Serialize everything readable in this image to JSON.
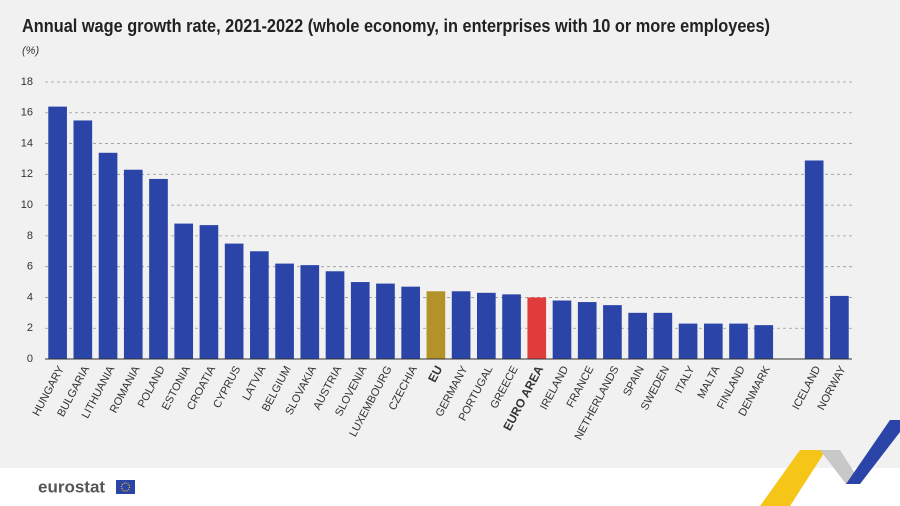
{
  "chart_data": {
    "type": "bar",
    "title": "Annual wage growth rate, 2021-2022 (whole economy, in enterprises with 10 or more employees)",
    "subtitle": "(%)",
    "categories": [
      "HUNGARY",
      "BULGARIA",
      "LITHUANIA",
      "ROMANIA",
      "POLAND",
      "ESTONIA",
      "CROATIA",
      "CYPRUS",
      "LATVIA",
      "BELGIUM",
      "SLOVAKIA",
      "AUSTRIA",
      "SLOVENIA",
      "LUXEMBOURG",
      "CZECHIA",
      "EU",
      "GERMANY",
      "PORTUGAL",
      "GREECE",
      "EURO AREA",
      "IRELAND",
      "FRANCE",
      "NETHERLANDS",
      "SPAIN",
      "SWEDEN",
      "ITALY",
      "MALTA",
      "FINLAND",
      "DENMARK",
      null,
      "ICELAND",
      "NORWAY"
    ],
    "values": [
      16.4,
      15.5,
      13.4,
      12.3,
      11.7,
      8.8,
      8.7,
      7.5,
      7.0,
      6.2,
      6.1,
      5.7,
      5.0,
      4.9,
      4.7,
      4.4,
      4.4,
      4.3,
      4.2,
      4.0,
      3.8,
      3.7,
      3.5,
      3.0,
      3.0,
      2.3,
      2.3,
      2.3,
      2.2,
      null,
      12.9,
      4.1
    ],
    "color": "#2a44a8",
    "colors": [
      "#2a44a8",
      "#2a44a8",
      "#2a44a8",
      "#2a44a8",
      "#2a44a8",
      "#2a44a8",
      "#2a44a8",
      "#2a44a8",
      "#2a44a8",
      "#2a44a8",
      "#2a44a8",
      "#2a44a8",
      "#2a44a8",
      "#2a44a8",
      "#2a44a8",
      "#b39228",
      "#2a44a8",
      "#2a44a8",
      "#2a44a8",
      "#e03c3c",
      "#2a44a8",
      "#2a44a8",
      "#2a44a8",
      "#2a44a8",
      "#2a44a8",
      "#2a44a8",
      "#2a44a8",
      "#2a44a8",
      "#2a44a8",
      null,
      "#2a44a8",
      "#2a44a8"
    ],
    "ylim": [
      0,
      18
    ],
    "yticks": [
      0,
      2,
      4,
      6,
      8,
      10,
      12,
      14,
      16,
      18
    ],
    "grid": true,
    "source_logo": "eurostat"
  }
}
